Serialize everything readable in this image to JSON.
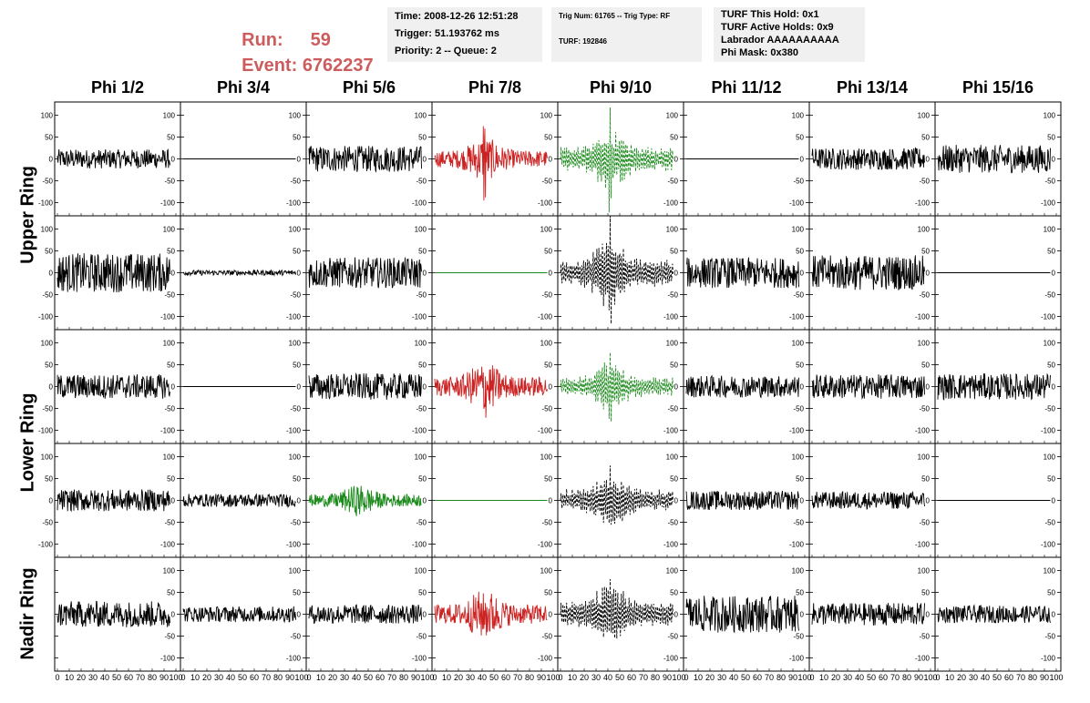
{
  "header": {
    "run_label": "Run:",
    "run_value": "59",
    "event_label": "Event:",
    "event_value": "6762237",
    "time": "Time: 2008-12-26 12:51:28",
    "trigger": "Trigger: 51.193762 ms",
    "priority": "Priority: 2 -- Queue: 2",
    "trig_num": "Trig Num: 61765 -- Trig Type: RF",
    "turf": "TURF: 192846",
    "turf_this_hold": "TURF This Hold: 0x1",
    "turf_active_holds": "TURF Active Holds: 0x9",
    "labrador": "Labrador AAAAAAAAAA",
    "phi_mask": "Phi Mask: 0x380"
  },
  "colors": {
    "accent_text": "#cd5c5c",
    "trace_normal": "#000000",
    "trace_red": "#cc2222",
    "trace_green": "#1a8a1a",
    "info_bg": "#f0f0f0"
  },
  "chart_data": {
    "type": "line",
    "columns": [
      "Phi 1/2",
      "Phi 3/4",
      "Phi 5/6",
      "Phi 7/8",
      "Phi 9/10",
      "Phi 11/12",
      "Phi 13/14",
      "Phi 15/16"
    ],
    "row_labels": [
      {
        "label": "Upper Ring",
        "rows": [
          0,
          1
        ]
      },
      {
        "label": "Lower Ring",
        "rows": [
          2,
          3
        ]
      },
      {
        "label": "Nadir Ring",
        "rows": [
          4
        ]
      }
    ],
    "xlim": [
      0,
      100
    ],
    "ylim": [
      -130,
      130
    ],
    "yticks": [
      -100,
      -50,
      0,
      50,
      100
    ],
    "xticks": [
      0,
      10,
      20,
      30,
      40,
      50,
      60,
      70,
      80,
      90,
      100
    ],
    "x_tick_labels_row": [
      "0",
      "10",
      "20",
      "30",
      "40",
      "50",
      "60",
      "70",
      "80",
      "90",
      "100"
    ],
    "row_left_axis_labels": [
      true,
      true,
      true,
      true,
      false
    ],
    "panels": [
      [
        {
          "style": "noise",
          "color": "black",
          "amp": 22,
          "xmax": 95,
          "pulse": 0
        },
        {
          "style": "flat",
          "color": "black",
          "amp": 0,
          "xmax": 95,
          "pulse": 0
        },
        {
          "style": "noise",
          "color": "black",
          "amp": 30,
          "xmax": 95,
          "pulse": 0
        },
        {
          "style": "pulse",
          "color": "red",
          "amp": 35,
          "xmax": 95,
          "pulse": 120
        },
        {
          "style": "dashed",
          "color": "green",
          "amp": 45,
          "xmax": 95,
          "pulse": 130
        },
        {
          "style": "flat",
          "color": "black",
          "amp": 0,
          "xmax": 95,
          "pulse": 0
        },
        {
          "style": "noise",
          "color": "black",
          "amp": 25,
          "xmax": 95,
          "pulse": 0
        },
        {
          "style": "noise",
          "color": "black",
          "amp": 32,
          "xmax": 95,
          "pulse": 0
        }
      ],
      [
        {
          "style": "noise",
          "color": "black",
          "amp": 45,
          "xmax": 95,
          "pulse": 0
        },
        {
          "style": "noise",
          "color": "black",
          "amp": 6,
          "xmax": 95,
          "pulse": 0
        },
        {
          "style": "noise",
          "color": "black",
          "amp": 35,
          "xmax": 95,
          "pulse": 0
        },
        {
          "style": "flat",
          "color": "green",
          "amp": 0,
          "xmax": 95,
          "pulse": 0
        },
        {
          "style": "dashed",
          "color": "black",
          "amp": 50,
          "xmax": 95,
          "pulse": 110
        },
        {
          "style": "noise",
          "color": "black",
          "amp": 35,
          "xmax": 95,
          "pulse": 0
        },
        {
          "style": "noise",
          "color": "black",
          "amp": 40,
          "xmax": 95,
          "pulse": 0
        },
        {
          "style": "flat",
          "color": "black",
          "amp": 0,
          "xmax": 95,
          "pulse": 0
        }
      ],
      [
        {
          "style": "noise",
          "color": "black",
          "amp": 28,
          "xmax": 95,
          "pulse": 0
        },
        {
          "style": "flat",
          "color": "black",
          "amp": 0,
          "xmax": 95,
          "pulse": 0
        },
        {
          "style": "noise",
          "color": "black",
          "amp": 30,
          "xmax": 95,
          "pulse": 0
        },
        {
          "style": "pulse",
          "color": "red",
          "amp": 40,
          "xmax": 95,
          "pulse": 75
        },
        {
          "style": "dashed",
          "color": "green",
          "amp": 35,
          "xmax": 95,
          "pulse": 85
        },
        {
          "style": "noise",
          "color": "black",
          "amp": 25,
          "xmax": 95,
          "pulse": 0
        },
        {
          "style": "noise",
          "color": "black",
          "amp": 28,
          "xmax": 95,
          "pulse": 0
        },
        {
          "style": "noise",
          "color": "black",
          "amp": 30,
          "xmax": 95,
          "pulse": 0
        }
      ],
      [
        {
          "style": "noise",
          "color": "black",
          "amp": 25,
          "xmax": 95,
          "pulse": 0
        },
        {
          "style": "noise",
          "color": "black",
          "amp": 15,
          "xmax": 95,
          "pulse": 0
        },
        {
          "style": "pulse",
          "color": "green",
          "amp": 25,
          "xmax": 95,
          "pulse": 40
        },
        {
          "style": "flat",
          "color": "green",
          "amp": 0,
          "xmax": 95,
          "pulse": 0
        },
        {
          "style": "dashed",
          "color": "black",
          "amp": 40,
          "xmax": 95,
          "pulse": 70
        },
        {
          "style": "noise",
          "color": "black",
          "amp": 22,
          "xmax": 95,
          "pulse": 0
        },
        {
          "style": "noise",
          "color": "black",
          "amp": 20,
          "xmax": 95,
          "pulse": 0
        },
        {
          "style": "flat",
          "color": "black",
          "amp": 0,
          "xmax": 95,
          "pulse": 0
        }
      ],
      [
        {
          "style": "noise",
          "color": "black",
          "amp": 30,
          "xmax": 95,
          "pulse": 0
        },
        {
          "style": "noise",
          "color": "black",
          "amp": 18,
          "xmax": 95,
          "pulse": 0
        },
        {
          "style": "noise",
          "color": "black",
          "amp": 22,
          "xmax": 95,
          "pulse": 0
        },
        {
          "style": "pulse",
          "color": "red",
          "amp": 40,
          "xmax": 95,
          "pulse": 50
        },
        {
          "style": "dashed",
          "color": "black",
          "amp": 45,
          "xmax": 95,
          "pulse": 80
        },
        {
          "style": "noise",
          "color": "black",
          "amp": 42,
          "xmax": 95,
          "pulse": 0
        },
        {
          "style": "noise",
          "color": "black",
          "amp": 26,
          "xmax": 95,
          "pulse": 0
        },
        {
          "style": "noise",
          "color": "black",
          "amp": 20,
          "xmax": 95,
          "pulse": 0
        }
      ]
    ]
  }
}
